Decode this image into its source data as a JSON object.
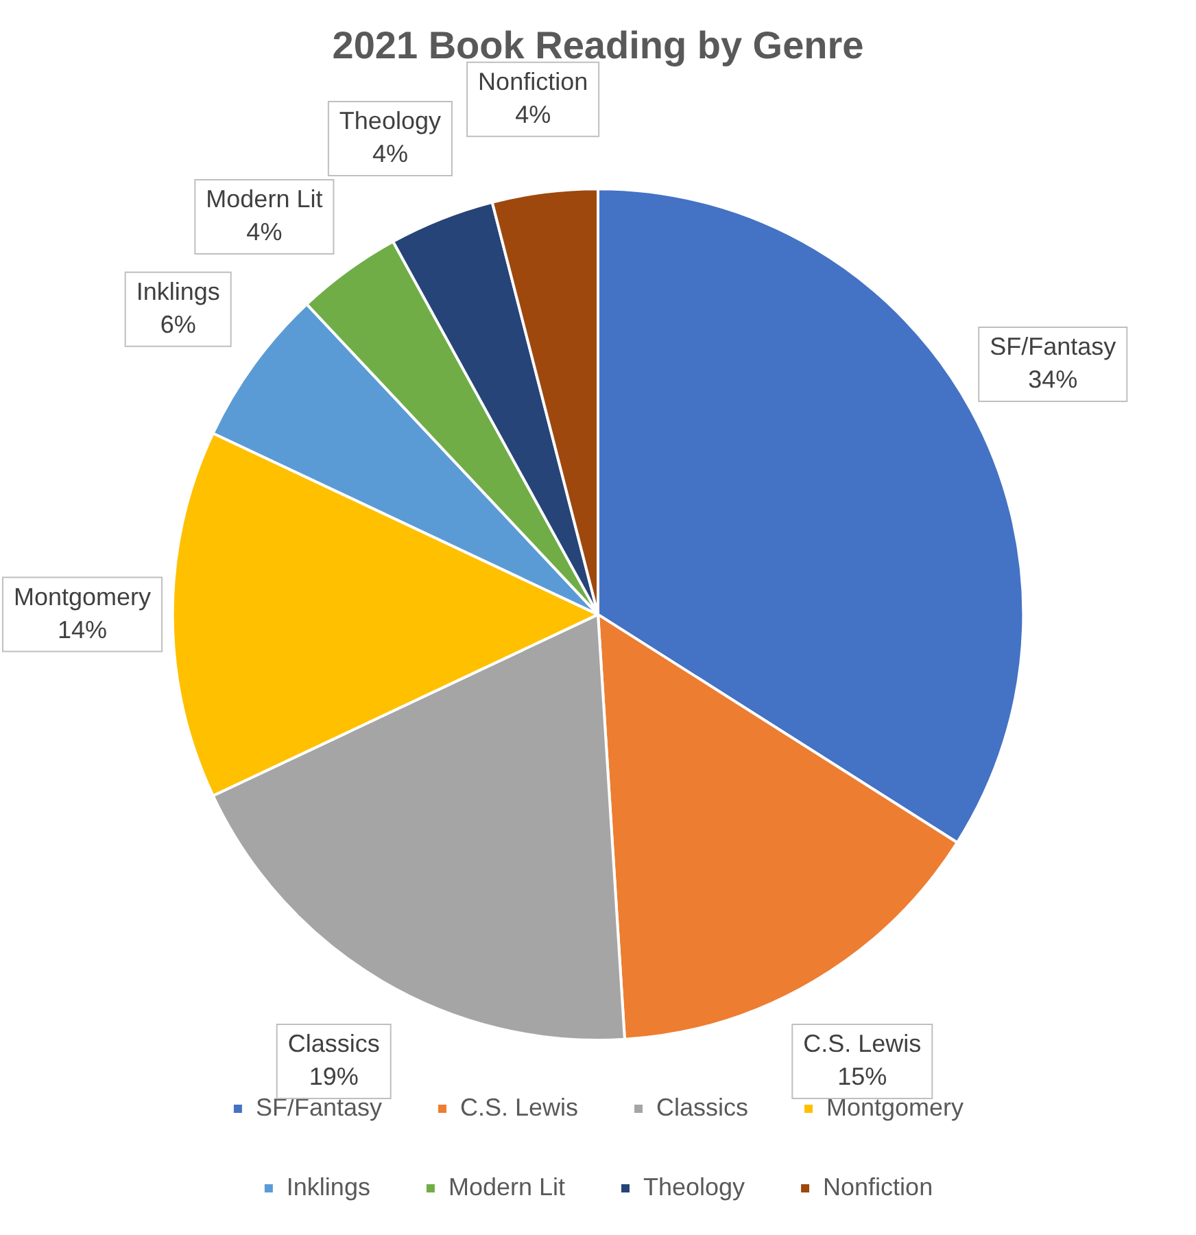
{
  "chart_data": {
    "type": "pie",
    "title": "2021 Book Reading by Genre",
    "categories": [
      "SF/Fantasy",
      "C.S. Lewis",
      "Classics",
      "Montgomery",
      "Inklings",
      "Modern Lit",
      "Theology",
      "Nonfiction"
    ],
    "values": [
      34,
      15,
      19,
      14,
      6,
      4,
      4,
      4
    ],
    "value_labels": [
      "34%",
      "15%",
      "19%",
      "14%",
      "6%",
      "4%",
      "4%",
      "4%"
    ],
    "colors": [
      "#4472c4",
      "#ed7d31",
      "#a5a5a5",
      "#ffc000",
      "#5b9bd5",
      "#70ad47",
      "#264478",
      "#9e480e"
    ],
    "legend": "bottom"
  }
}
